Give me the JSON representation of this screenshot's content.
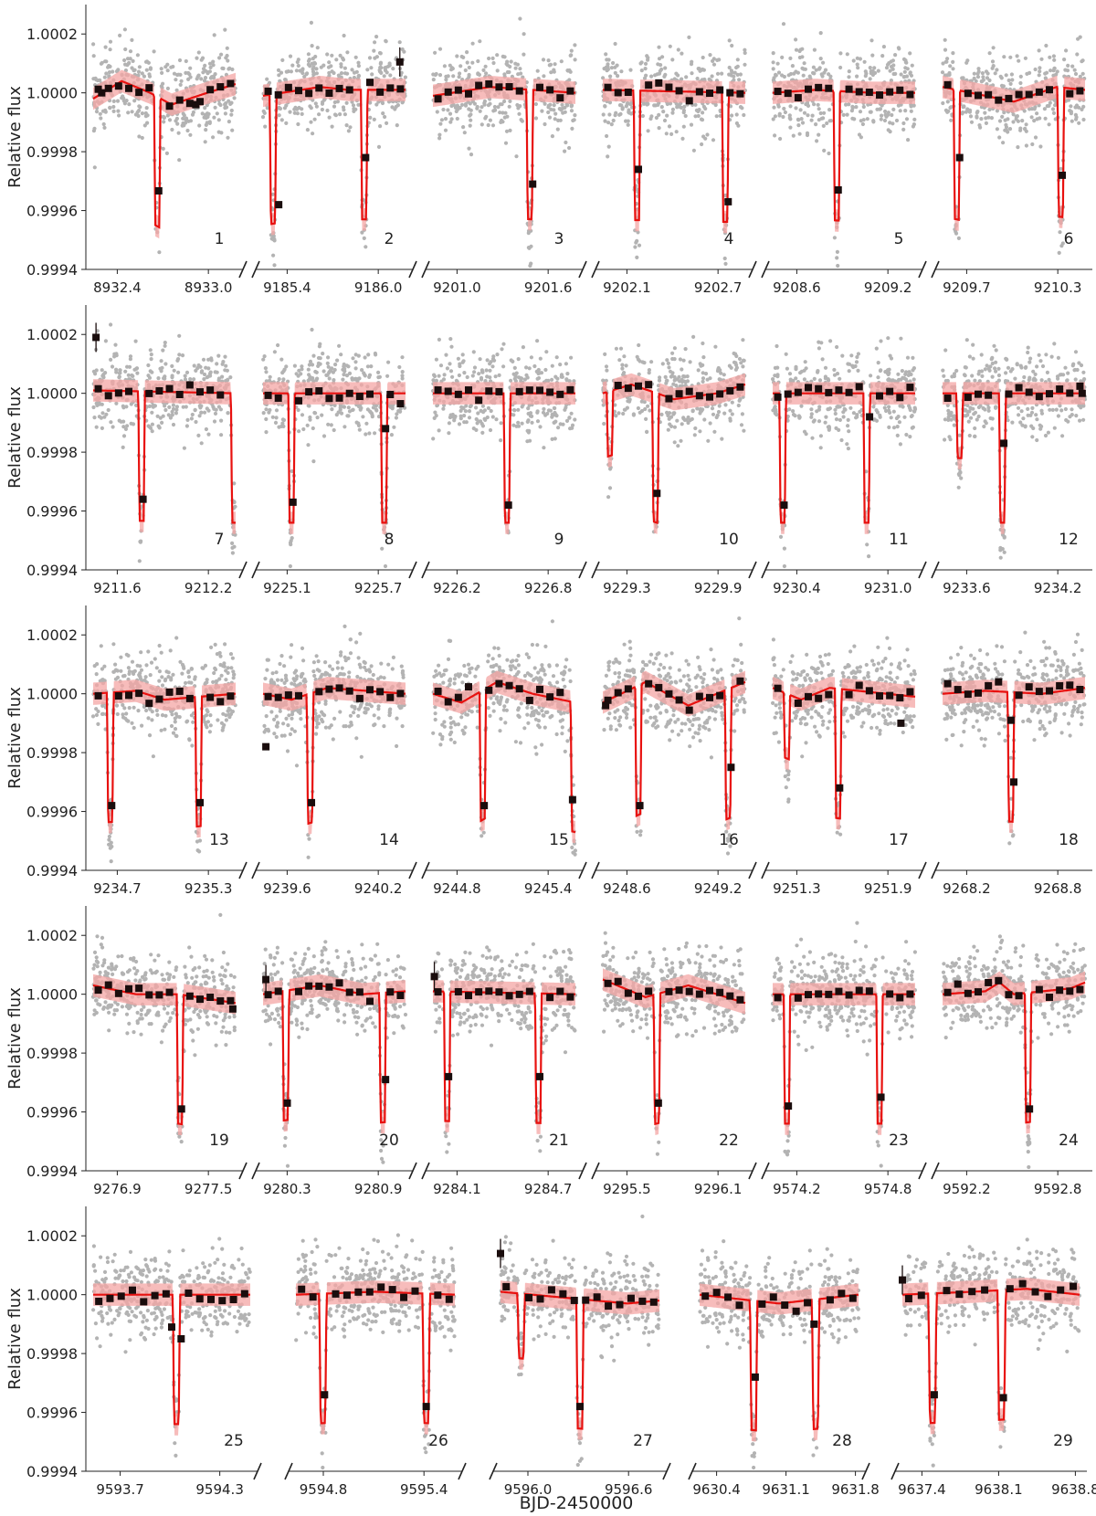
{
  "figure": {
    "xlabel": "BJD-2450000",
    "ylabel": "Relative flux",
    "y_ticks": [
      "0.9994",
      "0.9996",
      "0.9998",
      "1.0000",
      "1.0002"
    ],
    "y_tick_values": [
      0.9994,
      0.9996,
      0.9998,
      1.0,
      1.0002
    ],
    "ylim": [
      0.9994,
      1.0003
    ],
    "colors": {
      "raw_points": "#b3b3b3",
      "binned_points": "#1a0d0d",
      "model_line": "#e8110f",
      "model_band": "#f4a6a4",
      "axis": "#222222"
    }
  },
  "chart_data": [
    {
      "type": "scatter",
      "panel": "1",
      "xticks": [
        "8932.4",
        "8933.0"
      ],
      "dips": [
        [
          0.45,
          1.0,
          0.0457
        ]
      ],
      "trend": [
        [
          0,
          -0.02
        ],
        [
          0.2,
          0.04
        ],
        [
          0.4,
          0.0
        ],
        [
          0.55,
          -0.04
        ],
        [
          0.8,
          0.0
        ],
        [
          1,
          0.03
        ]
      ],
      "binned": [
        [
          0.06,
          0.0
        ],
        [
          0.46,
          -0.333
        ],
        [
          0.72,
          -0.04
        ]
      ]
    },
    {
      "type": "scatter",
      "panel": "2",
      "xticks": [
        "9185.4",
        "9186.0"
      ],
      "dips": [
        [
          0.07,
          1.0,
          0.0457
        ],
        [
          0.71,
          1.0,
          0.0457
        ]
      ],
      "trend": [
        [
          0,
          -0.01
        ],
        [
          0.4,
          0.02
        ],
        [
          0.6,
          0.01
        ],
        [
          1,
          0.01
        ]
      ],
      "binned": [
        [
          0.11,
          -0.38
        ],
        [
          0.72,
          -0.22
        ],
        [
          0.96,
          0.105
        ]
      ]
    },
    {
      "type": "scatter",
      "panel": "3",
      "xticks": [
        "9201.0",
        "9201.6"
      ],
      "dips": [
        [
          0.68,
          1.0,
          0.0457
        ]
      ],
      "trend": [
        [
          0,
          -0.01
        ],
        [
          0.4,
          0.02
        ],
        [
          1,
          0.0
        ]
      ],
      "binned": [
        [
          0.7,
          -0.31
        ]
      ]
    },
    {
      "type": "scatter",
      "panel": "4",
      "xticks": [
        "9202.1",
        "9202.7"
      ],
      "dips": [
        [
          0.24,
          1.0,
          0.0457
        ],
        [
          0.86,
          1.0,
          0.0457
        ]
      ],
      "trend": [
        [
          0,
          0.01
        ],
        [
          1,
          0.0
        ]
      ],
      "binned": [
        [
          0.25,
          -0.26
        ],
        [
          0.88,
          -0.37
        ]
      ]
    },
    {
      "type": "scatter",
      "panel": "5",
      "xticks": [
        "9208.6",
        "9209.2"
      ],
      "dips": [
        [
          0.45,
          1.0,
          0.0457
        ]
      ],
      "trend": [
        [
          0,
          0.0
        ],
        [
          0.3,
          0.01
        ],
        [
          0.7,
          0.0
        ],
        [
          1,
          0.0
        ]
      ],
      "binned": [
        [
          0.46,
          -0.33
        ]
      ]
    },
    {
      "type": "scatter",
      "panel": "6",
      "xticks": [
        "9209.7",
        "9210.3"
      ],
      "dips": [
        [
          0.1,
          1.0,
          0.0457
        ],
        [
          0.83,
          1.0,
          0.0457
        ]
      ],
      "trend": [
        [
          0,
          0.02
        ],
        [
          0.5,
          -0.03
        ],
        [
          0.8,
          0.02
        ],
        [
          1,
          0.01
        ]
      ],
      "binned": [
        [
          0.12,
          -0.22
        ],
        [
          0.84,
          -0.28
        ]
      ]
    },
    {
      "type": "scatter",
      "panel": "7",
      "xticks": [
        "9211.6",
        "9212.2"
      ],
      "dips": [
        [
          0.34,
          1.0,
          0.0457
        ],
        [
          0.99,
          1.0,
          0.0457
        ]
      ],
      "trend": [
        [
          0,
          0.01
        ],
        [
          1,
          0.0
        ]
      ],
      "binned": [
        [
          0.02,
          0.19
        ],
        [
          0.35,
          -0.36
        ]
      ]
    },
    {
      "type": "scatter",
      "panel": "8",
      "xticks": [
        "9225.1",
        "9225.7"
      ],
      "dips": [
        [
          0.2,
          1.0,
          0.0457
        ],
        [
          0.85,
          1.0,
          0.0457
        ]
      ],
      "trend": [
        [
          0,
          0.0
        ],
        [
          1,
          0.0
        ]
      ],
      "binned": [
        [
          0.21,
          -0.37
        ],
        [
          0.86,
          -0.12
        ]
      ]
    },
    {
      "type": "scatter",
      "panel": "9",
      "xticks": [
        "9226.2",
        "9226.8"
      ],
      "dips": [
        [
          0.52,
          1.0,
          0.0457
        ]
      ],
      "trend": [
        [
          0,
          0.0
        ],
        [
          1,
          0.0
        ]
      ],
      "binned": [
        [
          0.53,
          -0.38
        ]
      ]
    },
    {
      "type": "scatter",
      "panel": "10",
      "xticks": [
        "9229.3",
        "9229.9"
      ],
      "dips": [
        [
          0.05,
          0.5,
          0.0457
        ],
        [
          0.37,
          1.0,
          0.0457
        ]
      ],
      "trend": [
        [
          0,
          0.0
        ],
        [
          0.2,
          0.03
        ],
        [
          0.5,
          -0.02
        ],
        [
          0.8,
          0.0
        ],
        [
          1,
          0.03
        ]
      ],
      "binned": [
        [
          0.38,
          -0.34
        ]
      ]
    },
    {
      "type": "scatter",
      "panel": "11",
      "xticks": [
        "9230.4",
        "9231.0"
      ],
      "dips": [
        [
          0.07,
          1.0,
          0.0457
        ],
        [
          0.66,
          1.0,
          0.0457
        ]
      ],
      "trend": [
        [
          0,
          0.0
        ],
        [
          1,
          0.0
        ]
      ],
      "binned": [
        [
          0.08,
          -0.38
        ],
        [
          0.68,
          -0.08
        ]
      ]
    },
    {
      "type": "scatter",
      "panel": "12",
      "xticks": [
        "9233.6",
        "9234.2"
      ],
      "dips": [
        [
          0.12,
          0.5,
          0.0457
        ],
        [
          0.42,
          1.0,
          0.0457
        ]
      ],
      "trend": [
        [
          0,
          0.0
        ],
        [
          1,
          0.0
        ]
      ],
      "binned": [
        [
          0.43,
          -0.17
        ],
        [
          0.98,
          0.0
        ]
      ]
    },
    {
      "type": "scatter",
      "panel": "13",
      "xticks": [
        "9234.7",
        "9235.3"
      ],
      "dips": [
        [
          0.12,
          1.0,
          0.0457
        ],
        [
          0.74,
          1.0,
          0.0457
        ]
      ],
      "trend": [
        [
          0,
          0.0
        ],
        [
          0.3,
          0.01
        ],
        [
          0.5,
          -0.02
        ],
        [
          1,
          0.0
        ]
      ],
      "binned": [
        [
          0.13,
          -0.38
        ],
        [
          0.75,
          -0.37
        ]
      ]
    },
    {
      "type": "scatter",
      "panel": "14",
      "xticks": [
        "9239.6",
        "9240.2"
      ],
      "dips": [
        [
          0.33,
          1.0,
          0.0457
        ]
      ],
      "trend": [
        [
          0,
          0.0
        ],
        [
          0.2,
          -0.02
        ],
        [
          0.45,
          0.02
        ],
        [
          1,
          0.0
        ]
      ],
      "binned": [
        [
          0.02,
          -0.18
        ],
        [
          0.34,
          -0.37
        ]
      ]
    },
    {
      "type": "scatter",
      "panel": "15",
      "xticks": [
        "9244.8",
        "9245.4"
      ],
      "dips": [
        [
          0.35,
          1.0,
          0.0457
        ],
        [
          0.99,
          1.0,
          0.0457
        ]
      ],
      "trend": [
        [
          0,
          0.0
        ],
        [
          0.2,
          -0.03
        ],
        [
          0.45,
          0.04
        ],
        [
          0.7,
          0.0
        ],
        [
          1,
          -0.03
        ]
      ],
      "binned": [
        [
          0.36,
          -0.38
        ],
        [
          0.98,
          -0.36
        ]
      ]
    },
    {
      "type": "scatter",
      "panel": "16",
      "xticks": [
        "9248.6",
        "9249.2"
      ],
      "dips": [
        [
          0.25,
          1.0,
          0.0457
        ],
        [
          0.88,
          1.0,
          0.0457
        ]
      ],
      "trend": [
        [
          0,
          -0.03
        ],
        [
          0.3,
          0.04
        ],
        [
          0.6,
          -0.04
        ],
        [
          0.85,
          0.01
        ],
        [
          1,
          0.04
        ]
      ],
      "binned": [
        [
          0.02,
          -0.04
        ],
        [
          0.26,
          -0.38
        ],
        [
          0.9,
          -0.25
        ]
      ]
    },
    {
      "type": "scatter",
      "panel": "17",
      "xticks": [
        "9251.3",
        "9251.9"
      ],
      "dips": [
        [
          0.1,
          0.5,
          0.0457
        ],
        [
          0.46,
          1.0,
          0.0457
        ]
      ],
      "trend": [
        [
          0,
          0.02
        ],
        [
          0.2,
          -0.02
        ],
        [
          0.4,
          0.02
        ],
        [
          1,
          -0.01
        ]
      ],
      "binned": [
        [
          0.47,
          -0.32
        ],
        [
          0.9,
          -0.1
        ]
      ]
    },
    {
      "type": "scatter",
      "panel": "18",
      "xticks": [
        "9268.2",
        "9268.8"
      ],
      "dips": [
        [
          0.48,
          1.0,
          0.0457
        ]
      ],
      "trend": [
        [
          0,
          0.0
        ],
        [
          0.3,
          0.01
        ],
        [
          0.7,
          0.0
        ],
        [
          1,
          0.02
        ]
      ],
      "binned": [
        [
          0.48,
          -0.09
        ],
        [
          0.5,
          -0.3
        ]
      ]
    },
    {
      "type": "scatter",
      "panel": "19",
      "xticks": [
        "9276.9",
        "9277.5"
      ],
      "dips": [
        [
          0.61,
          1.0,
          0.0457
        ]
      ],
      "trend": [
        [
          0,
          0.03
        ],
        [
          0.3,
          0.0
        ],
        [
          0.6,
          0.0
        ],
        [
          1,
          -0.03
        ]
      ],
      "binned": [
        [
          0.62,
          -0.39
        ],
        [
          0.98,
          -0.05
        ]
      ]
    },
    {
      "type": "scatter",
      "panel": "20",
      "xticks": [
        "9280.3",
        "9280.9"
      ],
      "dips": [
        [
          0.16,
          1.0,
          0.0457
        ],
        [
          0.84,
          1.0,
          0.0457
        ]
      ],
      "trend": [
        [
          0,
          0.0
        ],
        [
          0.4,
          0.03
        ],
        [
          0.7,
          0.0
        ],
        [
          1,
          0.01
        ]
      ],
      "binned": [
        [
          0.02,
          0.05
        ],
        [
          0.17,
          -0.37
        ],
        [
          0.86,
          -0.29
        ]
      ]
    },
    {
      "type": "scatter",
      "panel": "21",
      "xticks": [
        "9284.1",
        "9284.7"
      ],
      "dips": [
        [
          0.1,
          1.0,
          0.0457
        ],
        [
          0.74,
          1.0,
          0.0457
        ]
      ],
      "trend": [
        [
          0,
          0.01
        ],
        [
          1,
          0.0
        ]
      ],
      "binned": [
        [
          0.01,
          0.06
        ],
        [
          0.11,
          -0.28
        ],
        [
          0.75,
          -0.28
        ]
      ]
    },
    {
      "type": "scatter",
      "panel": "22",
      "xticks": [
        "9295.5",
        "9296.1"
      ],
      "dips": [
        [
          0.38,
          1.0,
          0.0457
        ]
      ],
      "trend": [
        [
          0,
          0.05
        ],
        [
          0.3,
          -0.01
        ],
        [
          0.6,
          0.03
        ],
        [
          1,
          -0.03
        ]
      ],
      "binned": [
        [
          0.39,
          -0.37
        ]
      ]
    },
    {
      "type": "scatter",
      "panel": "23",
      "xticks": [
        "9574.2",
        "9574.8"
      ],
      "dips": [
        [
          0.1,
          1.0,
          0.0457
        ],
        [
          0.75,
          1.0,
          0.0457
        ]
      ],
      "trend": [
        [
          0,
          0.0
        ],
        [
          1,
          0.0
        ]
      ],
      "binned": [
        [
          0.11,
          -0.38
        ],
        [
          0.76,
          -0.35
        ]
      ]
    },
    {
      "type": "scatter",
      "panel": "24",
      "xticks": [
        "9592.2",
        "9592.8"
      ],
      "dips": [
        [
          0.6,
          1.0,
          0.0457
        ]
      ],
      "trend": [
        [
          0,
          0.0
        ],
        [
          0.3,
          0.01
        ],
        [
          0.4,
          0.04
        ],
        [
          0.5,
          0.0
        ],
        [
          0.9,
          0.02
        ],
        [
          1,
          0.04
        ]
      ],
      "binned": [
        [
          0.61,
          -0.39
        ]
      ]
    },
    {
      "type": "scatter",
      "panel": "25",
      "xticks": [
        "9593.7",
        "9594.3"
      ],
      "dips": [
        [
          0.53,
          1.0,
          0.0457
        ]
      ],
      "trend": [
        [
          0,
          0.0
        ],
        [
          1,
          0.0
        ]
      ],
      "binned": [
        [
          0.5,
          -0.11
        ],
        [
          0.56,
          -0.15
        ]
      ]
    },
    {
      "type": "scatter",
      "panel": "26",
      "xticks": [
        "9594.8",
        "9595.4"
      ],
      "dips": [
        [
          0.17,
          1.0,
          0.0457
        ],
        [
          0.82,
          1.0,
          0.0457
        ]
      ],
      "trend": [
        [
          0,
          0.0
        ],
        [
          0.5,
          0.01
        ],
        [
          1,
          0.0
        ]
      ],
      "binned": [
        [
          0.18,
          -0.34
        ],
        [
          0.82,
          -0.38
        ]
      ]
    },
    {
      "type": "scatter",
      "panel": "27",
      "xticks": [
        "9596.0",
        "9596.6"
      ],
      "dips": [
        [
          0.13,
          0.5,
          0.0457
        ],
        [
          0.5,
          1.0,
          0.0457
        ]
      ],
      "trend": [
        [
          0,
          0.01
        ],
        [
          0.4,
          -0.01
        ],
        [
          0.8,
          -0.03
        ],
        [
          1,
          -0.02
        ]
      ],
      "binned": [
        [
          0.0,
          0.14
        ],
        [
          0.5,
          -0.38
        ]
      ]
    },
    {
      "type": "scatter",
      "panel": "28",
      "xticks": [
        "9630.4",
        "9631.1",
        "9631.8"
      ],
      "dips": [
        [
          0.34,
          1.0,
          0.0457
        ],
        [
          0.73,
          1.0,
          0.0457
        ]
      ],
      "trend": [
        [
          0,
          0.0
        ],
        [
          0.5,
          -0.03
        ],
        [
          1,
          0.0
        ]
      ],
      "binned": [
        [
          0.35,
          -0.28
        ],
        [
          0.72,
          -0.1
        ]
      ]
    },
    {
      "type": "scatter",
      "panel": "29",
      "xticks": [
        "9637.4",
        "9638.1",
        "9638.8"
      ],
      "dips": [
        [
          0.17,
          1.0,
          0.0457
        ],
        [
          0.56,
          1.0,
          0.0457
        ]
      ],
      "trend": [
        [
          0,
          0.0
        ],
        [
          0.4,
          0.01
        ],
        [
          0.7,
          0.02
        ],
        [
          1,
          0.0
        ]
      ],
      "binned": [
        [
          0.0,
          0.05
        ],
        [
          0.18,
          -0.34
        ],
        [
          0.57,
          -0.35
        ]
      ]
    }
  ]
}
